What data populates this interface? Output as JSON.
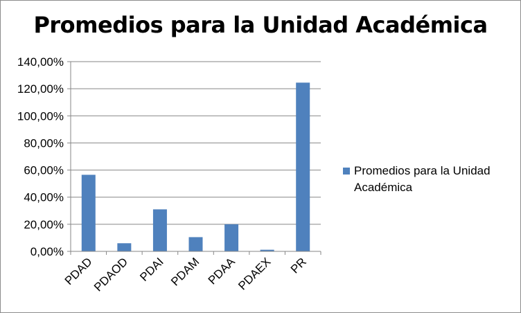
{
  "chart_data": {
    "type": "bar",
    "title": "Promedios para la Unidad Académica",
    "xlabel": "",
    "ylabel": "",
    "categories": [
      "PDAD",
      "PDAOD",
      "PDAI",
      "PDAM",
      "PDAA",
      "PDAEX",
      "PR"
    ],
    "series": [
      {
        "name": "Promedios para la Unidad Académica",
        "values": [
          56.5,
          6.0,
          31.0,
          10.5,
          20.0,
          1.2,
          124.5
        ]
      }
    ],
    "ylim": [
      0,
      140
    ],
    "yticks": [
      0,
      20,
      40,
      60,
      80,
      100,
      120,
      140
    ],
    "ytick_labels": [
      "0,00%",
      "20,00%",
      "40,00%",
      "60,00%",
      "80,00%",
      "100,00%",
      "120,00%",
      "140,00%"
    ],
    "grid": true,
    "legend_position": "right",
    "colors": {
      "bar": "#4f81bd",
      "grid": "#868686",
      "axis": "#868686"
    }
  }
}
